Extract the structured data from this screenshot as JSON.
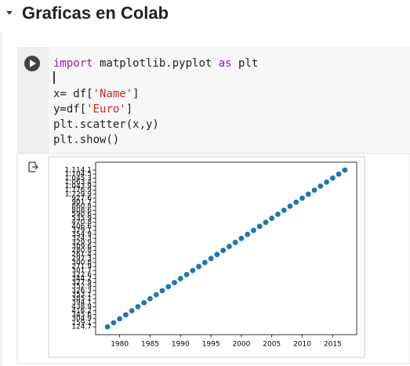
{
  "header": {
    "title": "Graficas en Colab"
  },
  "code": {
    "lines": [
      [
        {
          "text": "import",
          "color": "#8e24aa"
        },
        {
          "text": " matplotlib.pyplot ",
          "color": "#212121"
        },
        {
          "text": "as",
          "color": "#8e24aa"
        },
        {
          "text": " plt",
          "color": "#212121"
        }
      ],
      [],
      [
        {
          "text": "x= df[",
          "color": "#212121"
        },
        {
          "text": "'Name'",
          "color": "#c62828"
        },
        {
          "text": "]",
          "color": "#212121"
        }
      ],
      [
        {
          "text": "y=df[",
          "color": "#212121"
        },
        {
          "text": "'Euro'",
          "color": "#c62828"
        },
        {
          "text": "]",
          "color": "#212121"
        }
      ],
      [
        {
          "text": "plt.scatter(x,y)",
          "color": "#212121"
        }
      ],
      [
        {
          "text": "plt.show()",
          "color": "#212121"
        }
      ]
    ]
  },
  "chart_data": {
    "type": "scatter",
    "color": "#1f77b4",
    "x": [
      1978,
      1979,
      1980,
      1981,
      1982,
      1983,
      1984,
      1985,
      1986,
      1987,
      1988,
      1989,
      1990,
      1991,
      1992,
      1993,
      1994,
      1995,
      1996,
      1997,
      1998,
      1999,
      2000,
      2001,
      2002,
      2003,
      2004,
      2005,
      2006,
      2007,
      2008,
      2009,
      2010,
      2011,
      2012,
      2013,
      2014,
      2015,
      2016,
      2017
    ],
    "y": [
      "124.7",
      "159.1",
      "304.9",
      "345.6",
      "416.2",
      "438.9",
      "394.1",
      "385.1",
      "353.1",
      "326.3",
      "352.9",
      "327.9",
      "344.2",
      "322.6",
      "301.7",
      "271.9",
      "300.8",
      "297.3",
      "261.4",
      "280.8",
      "309.6",
      "329.9",
      "324.3",
      "354.9",
      "379.1",
      "406.6",
      "470.8",
      "535.9",
      "590.6",
      "808.6",
      "860.8",
      "901.7",
      "927.6",
      "1,729.9",
      "1,776.9",
      "1,043.9",
      "1,063.4",
      "1,045.3",
      "1,104.5",
      "1,114.1"
    ],
    "xlim": [
      1976.05,
      2018.95
    ],
    "xticks": [
      1980,
      1985,
      1990,
      1995,
      2000,
      2005,
      2010,
      2015
    ],
    "ylim": [
      -1.95,
      40.95
    ]
  }
}
